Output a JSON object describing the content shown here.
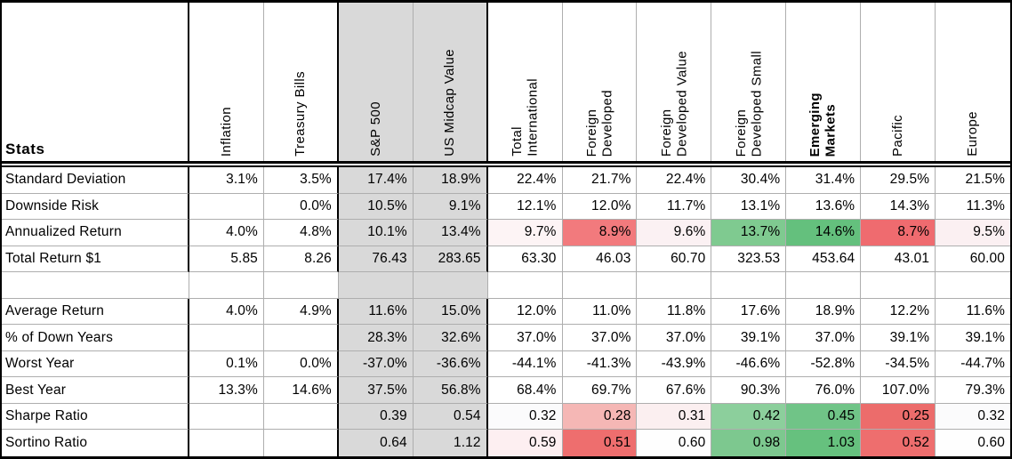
{
  "chart_data": {
    "type": "table",
    "title": "Stats",
    "columns": [
      {
        "label": "Inflation"
      },
      {
        "label": "Treasury Bills"
      },
      {
        "label": "S&P 500",
        "highlight": true
      },
      {
        "label": "US Midcap Value",
        "highlight": true
      },
      {
        "label": "Total\nInternational"
      },
      {
        "label": "Foreign\nDeveloped"
      },
      {
        "label": "Foreign\nDeveloped Value"
      },
      {
        "label": "Foreign\nDeveloped Small"
      },
      {
        "label": "Emerging\nMarkets",
        "bold": true
      },
      {
        "label": "Pacific"
      },
      {
        "label": "Europe"
      }
    ],
    "rows": [
      {
        "label": "Standard Deviation",
        "cells": [
          "3.1%",
          "3.5%",
          "17.4%",
          "18.9%",
          "22.4%",
          "21.7%",
          "22.4%",
          "30.4%",
          "31.4%",
          "29.5%",
          "21.5%"
        ]
      },
      {
        "label": "Downside Risk",
        "cells": [
          "",
          "0.0%",
          "10.5%",
          "9.1%",
          "12.1%",
          "12.0%",
          "11.7%",
          "13.1%",
          "13.6%",
          "14.3%",
          "11.3%"
        ]
      },
      {
        "label": "Annualized Return",
        "cells": [
          "4.0%",
          "4.8%",
          "10.1%",
          "13.4%",
          {
            "v": "9.7%",
            "bg": "#fdf4f5"
          },
          {
            "v": "8.9%",
            "bg": "#f27a7d"
          },
          {
            "v": "9.6%",
            "bg": "#fbf1f3"
          },
          {
            "v": "13.7%",
            "bg": "#7fca90"
          },
          {
            "v": "14.6%",
            "bg": "#64c07d"
          },
          {
            "v": "8.7%",
            "bg": "#ef6b6f"
          },
          {
            "v": "9.5%",
            "bg": "#fbf0f2"
          }
        ]
      },
      {
        "label": "Total Return $1",
        "cells": [
          "5.85",
          "8.26",
          "76.43",
          "283.65",
          "63.30",
          "46.03",
          "60.70",
          "323.53",
          "453.64",
          "43.01",
          "60.00"
        ]
      },
      {
        "label": "",
        "blank": true,
        "cells": [
          "",
          "",
          "",
          "",
          "",
          "",
          "",
          "",
          "",
          "",
          ""
        ]
      },
      {
        "label": "Average Return",
        "cells": [
          "4.0%",
          "4.9%",
          "11.6%",
          "15.0%",
          "12.0%",
          "11.0%",
          "11.8%",
          "17.6%",
          "18.9%",
          "12.2%",
          "11.6%"
        ]
      },
      {
        "label": "% of Down Years",
        "cells": [
          "",
          "",
          "28.3%",
          "32.6%",
          "37.0%",
          "37.0%",
          "37.0%",
          "39.1%",
          "37.0%",
          "39.1%",
          "39.1%"
        ]
      },
      {
        "label": "Worst Year",
        "cells": [
          "0.1%",
          "0.0%",
          "-37.0%",
          "-36.6%",
          "-44.1%",
          "-41.3%",
          "-43.9%",
          "-46.6%",
          "-52.8%",
          "-34.5%",
          "-44.7%"
        ]
      },
      {
        "label": "Best Year",
        "cells": [
          "13.3%",
          "14.6%",
          "37.5%",
          "56.8%",
          "68.4%",
          "69.7%",
          "67.6%",
          "90.3%",
          "76.0%",
          "107.0%",
          "79.3%"
        ]
      },
      {
        "label": "Sharpe Ratio",
        "cells": [
          "",
          "",
          "0.39",
          "0.54",
          {
            "v": "0.32",
            "bg": "#fbfbfc"
          },
          {
            "v": "0.28",
            "bg": "#f5b7b5"
          },
          {
            "v": "0.31",
            "bg": "#fbeff0"
          },
          {
            "v": "0.42",
            "bg": "#8ccf9c"
          },
          {
            "v": "0.45",
            "bg": "#70c487"
          },
          {
            "v": "0.25",
            "bg": "#ec6c6b"
          },
          {
            "v": "0.32",
            "bg": "#fbfbfc"
          }
        ]
      },
      {
        "label": "Sortino Ratio",
        "cells": [
          "",
          "",
          "0.64",
          "1.12",
          {
            "v": "0.59",
            "bg": "#fdeff1"
          },
          {
            "v": "0.51",
            "bg": "#ee6e6e"
          },
          {
            "v": "0.60",
            "bg": "#fefefe"
          },
          {
            "v": "0.98",
            "bg": "#7dc88f"
          },
          {
            "v": "1.03",
            "bg": "#66c17e"
          },
          {
            "v": "0.52",
            "bg": "#ee6e6e"
          },
          {
            "v": "0.60",
            "bg": "#fefefe"
          }
        ]
      }
    ],
    "layout": {
      "highlighted_columns": [
        "S&P 500",
        "US Midcap Value"
      ],
      "thick_border_after": [
        "Stats",
        "Treasury Bills",
        "US Midcap Value"
      ],
      "header_bottom_border": "double"
    }
  },
  "colors": {
    "column_highlight": "#d9d9d9",
    "grid_line": "#aeaeae",
    "outer_border": "#000000",
    "negative_strong": "#ee6e6e",
    "positive_strong": "#66c17e"
  }
}
